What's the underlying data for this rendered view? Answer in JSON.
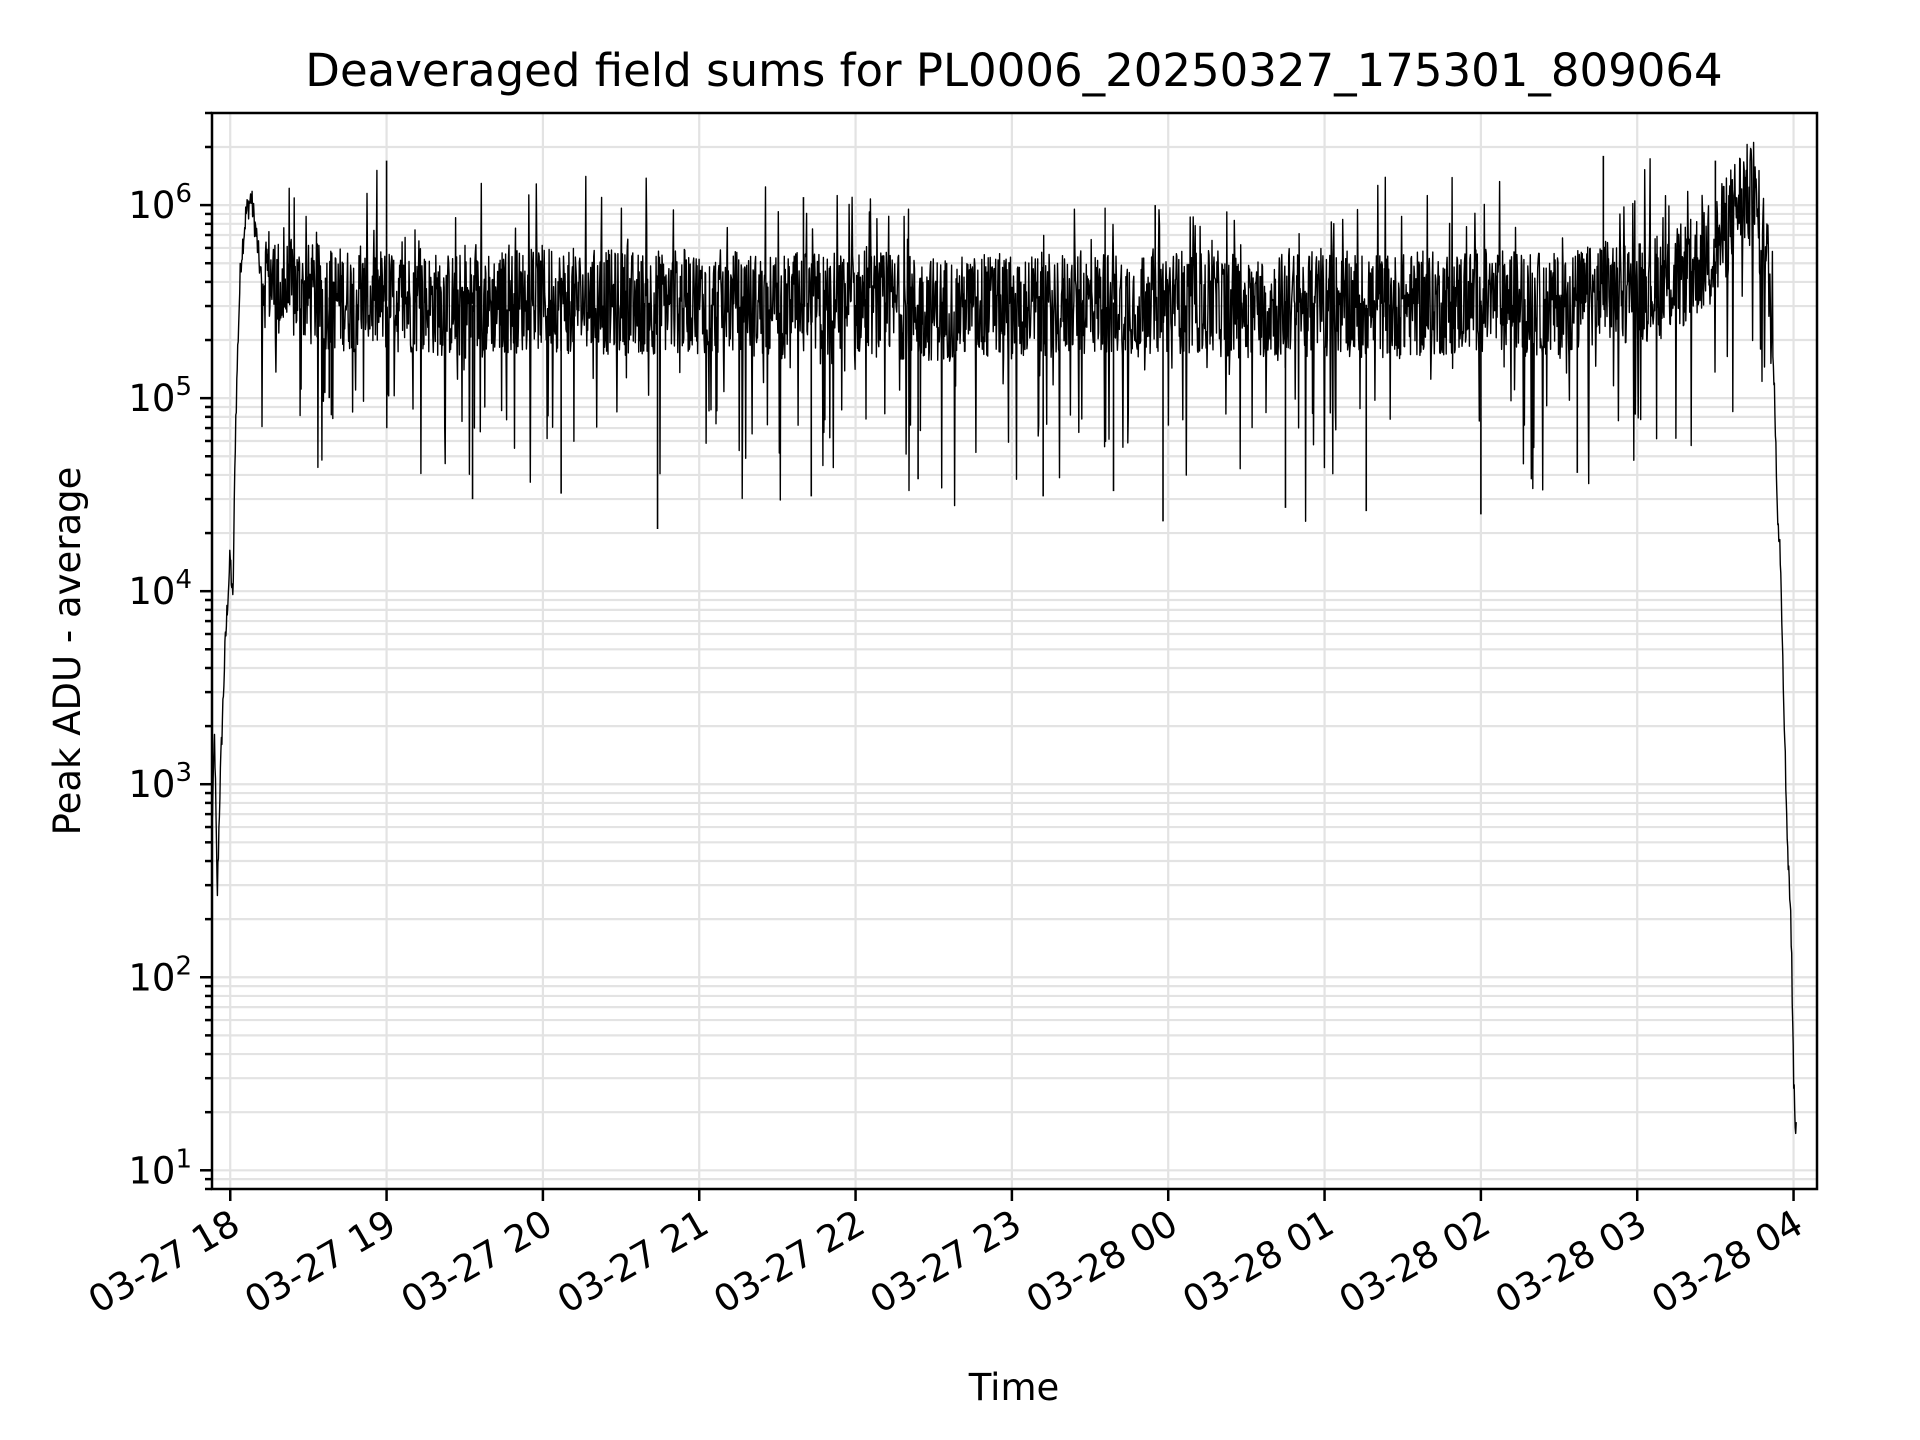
{
  "chart_data": {
    "type": "line",
    "title": "Deaveraged field sums for PL0006_20250327_175301_809064",
    "xlabel": "Time",
    "ylabel": "Peak ADU - average",
    "yscale": "log",
    "ylim": [
      8,
      3000000
    ],
    "xlim": [
      "2025-03-27 17:53",
      "2025-03-28 04:09"
    ],
    "grid": true,
    "x_ticks": [
      {
        "value": "2025-03-27 18:00",
        "label": "03-27 18"
      },
      {
        "value": "2025-03-27 19:00",
        "label": "03-27 19"
      },
      {
        "value": "2025-03-27 20:00",
        "label": "03-27 20"
      },
      {
        "value": "2025-03-27 21:00",
        "label": "03-27 21"
      },
      {
        "value": "2025-03-27 22:00",
        "label": "03-27 22"
      },
      {
        "value": "2025-03-27 23:00",
        "label": "03-27 23"
      },
      {
        "value": "2025-03-28 00:00",
        "label": "03-28 00"
      },
      {
        "value": "2025-03-28 01:00",
        "label": "03-28 01"
      },
      {
        "value": "2025-03-28 02:00",
        "label": "03-28 02"
      },
      {
        "value": "2025-03-28 03:00",
        "label": "03-28 03"
      },
      {
        "value": "2025-03-28 04:00",
        "label": "03-28 04"
      }
    ],
    "y_ticks": [
      {
        "value": 10,
        "base": "10",
        "exp": "1"
      },
      {
        "value": 100,
        "base": "10",
        "exp": "2"
      },
      {
        "value": 1000,
        "base": "10",
        "exp": "3"
      },
      {
        "value": 10000,
        "base": "10",
        "exp": "4"
      },
      {
        "value": 100000,
        "base": "10",
        "exp": "5"
      },
      {
        "value": 1000000,
        "base": "10",
        "exp": "6"
      }
    ],
    "series": [
      {
        "color": "#000000",
        "x": [
          "2025-03-27 17:53",
          "2025-03-27 17:54",
          "2025-03-27 17:55",
          "2025-03-27 17:56",
          "2025-03-27 17:57",
          "2025-03-27 17:58",
          "2025-03-27 17:59",
          "2025-03-27 18:00",
          "2025-03-27 18:01",
          "2025-03-27 18:02",
          "2025-03-27 18:03",
          "2025-03-27 18:04",
          "2025-03-27 18:06",
          "2025-03-27 18:08",
          "2025-03-27 18:10",
          "2025-03-27 18:12",
          "2025-03-27 18:14",
          "2025-03-27 18:17",
          "2025-03-27 18:20",
          "2025-03-27 18:25",
          "2025-03-27 18:30",
          "2025-03-27 18:40",
          "2025-03-27 19:00",
          "2025-03-27 19:30",
          "2025-03-27 20:00",
          "2025-03-27 20:30",
          "2025-03-27 21:00",
          "2025-03-27 21:30",
          "2025-03-27 22:00",
          "2025-03-27 22:30",
          "2025-03-27 23:00",
          "2025-03-27 23:30",
          "2025-03-28 00:00",
          "2025-03-28 00:30",
          "2025-03-28 01:00",
          "2025-03-28 01:30",
          "2025-03-28 02:00",
          "2025-03-28 02:30",
          "2025-03-28 02:50",
          "2025-03-28 03:00",
          "2025-03-28 03:10",
          "2025-03-28 03:20",
          "2025-03-28 03:30",
          "2025-03-28 03:35",
          "2025-03-28 03:38",
          "2025-03-28 03:41",
          "2025-03-28 03:44",
          "2025-03-28 03:47",
          "2025-03-28 03:50",
          "2025-03-28 03:52",
          "2025-03-28 03:54",
          "2025-03-28 03:55",
          "2025-03-28 03:56",
          "2025-03-28 03:57",
          "2025-03-28 03:58",
          "2025-03-28 03:59",
          "2025-03-28 04:00",
          "2025-03-28 04:01"
        ],
        "values": [
          600,
          1800,
          250,
          900,
          2200,
          5000,
          9000,
          15000,
          8500,
          70000,
          200000,
          500000,
          900000,
          1100000,
          700000,
          400000,
          450000,
          380000,
          350000,
          360000,
          340000,
          330000,
          320000,
          300000,
          330000,
          310000,
          320000,
          300000,
          310000,
          290000,
          300000,
          310000,
          320000,
          300000,
          310000,
          300000,
          320000,
          300000,
          350000,
          360000,
          380000,
          450000,
          600000,
          800000,
          1000000,
          1150000,
          1050000,
          800000,
          500000,
          200000,
          25000,
          15000,
          4000,
          1000,
          400,
          200,
          30,
          15
        ],
        "peaks": [
          {
            "x": "2025-03-27 19:00",
            "value": 1700000
          },
          {
            "x": "2025-03-27 21:40",
            "value": 1100000
          },
          {
            "x": "2025-03-27 23:55",
            "value": 1000000
          },
          {
            "x": "2025-03-28 02:47",
            "value": 1800000
          },
          {
            "x": "2025-03-28 03:30",
            "value": 1700000
          }
        ],
        "dips": [
          {
            "x": "2025-03-27 18:38",
            "value": 100000
          },
          {
            "x": "2025-03-27 19:33",
            "value": 30000
          },
          {
            "x": "2025-03-27 20:07",
            "value": 32000
          },
          {
            "x": "2025-03-27 20:44",
            "value": 21000
          },
          {
            "x": "2025-03-27 21:43",
            "value": 31000
          },
          {
            "x": "2025-03-27 22:24",
            "value": 38000
          },
          {
            "x": "2025-03-27 23:12",
            "value": 31000
          },
          {
            "x": "2025-03-27 23:39",
            "value": 33000
          },
          {
            "x": "2025-03-27 23:58",
            "value": 23000
          },
          {
            "x": "2025-03-28 00:45",
            "value": 27000
          },
          {
            "x": "2025-03-28 01:16",
            "value": 26000
          },
          {
            "x": "2025-03-28 02:00",
            "value": 25000
          },
          {
            "x": "2025-03-28 02:37",
            "value": 41000
          }
        ]
      }
    ]
  }
}
